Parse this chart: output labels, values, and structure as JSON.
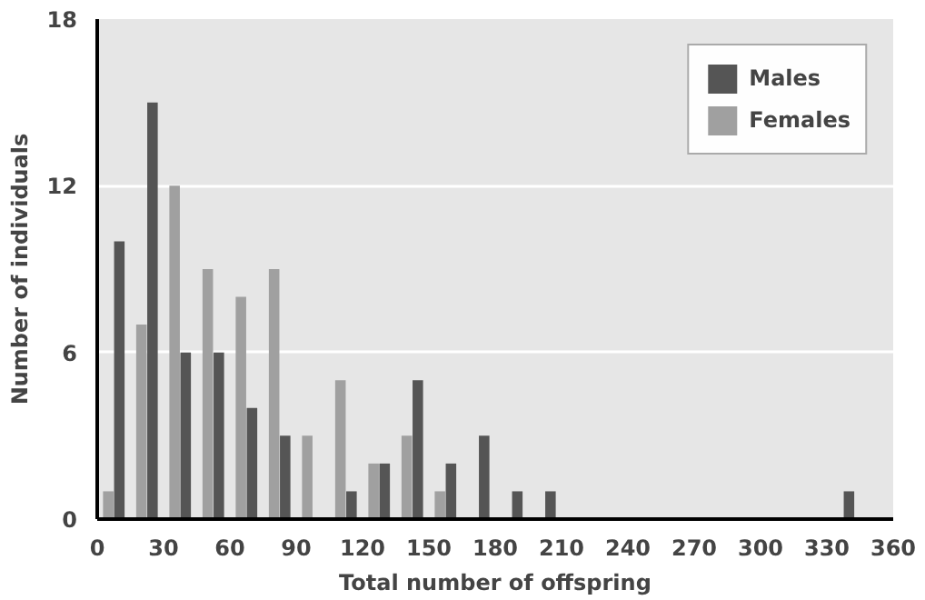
{
  "chart_data": {
    "type": "histogram",
    "xlabel": "Total number of offspring",
    "ylabel": "Number of individuals",
    "bins": [
      0,
      15,
      30,
      45,
      60,
      75,
      90,
      105,
      120,
      135,
      150,
      165,
      180,
      195,
      210,
      225,
      240,
      255,
      270,
      285,
      300,
      315,
      330,
      345,
      360
    ],
    "series": [
      {
        "name": "Females",
        "color": "#a0a0a0",
        "values": [
          1,
          7,
          12,
          9,
          8,
          9,
          3,
          5,
          2,
          3,
          1,
          0,
          0,
          0,
          0,
          0,
          0,
          0,
          0,
          0,
          0,
          0,
          0,
          0
        ]
      },
      {
        "name": "Males",
        "color": "#555555",
        "values": [
          10,
          15,
          6,
          6,
          4,
          3,
          0,
          1,
          2,
          5,
          2,
          3,
          1,
          1,
          0,
          0,
          0,
          0,
          0,
          0,
          0,
          0,
          1,
          0
        ]
      }
    ],
    "xlim": [
      0,
      360
    ],
    "xticks": [
      0,
      30,
      60,
      90,
      120,
      150,
      180,
      210,
      240,
      270,
      300,
      330,
      360
    ],
    "ylim": [
      0,
      18
    ],
    "yticks": [
      0,
      6,
      12,
      18
    ],
    "grid": "y",
    "legend": "top right"
  }
}
